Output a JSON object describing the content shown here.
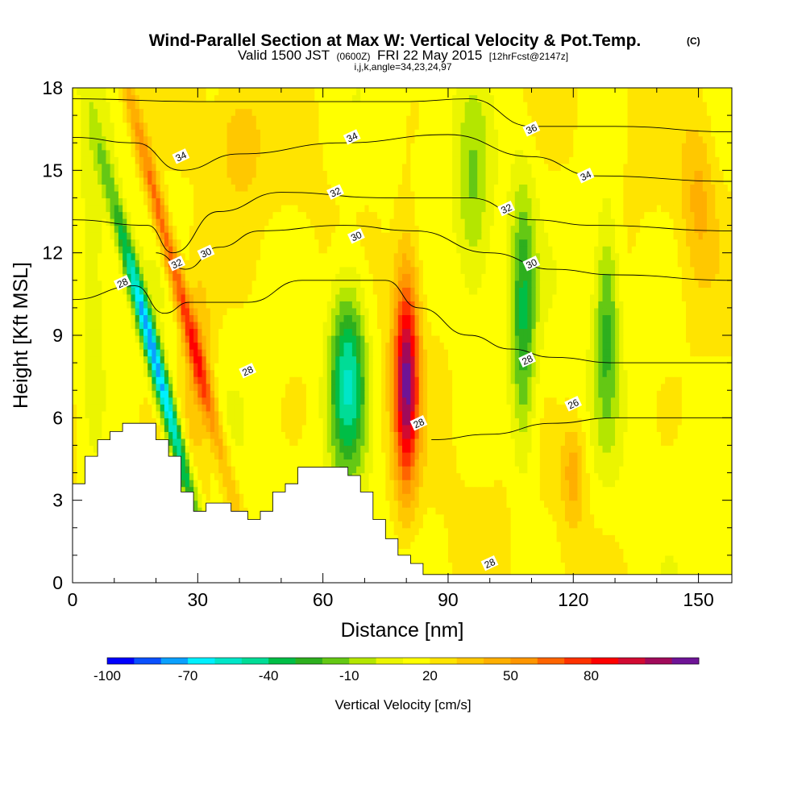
{
  "title": {
    "main": "Wind-Parallel Section at Max W: Vertical Velocity & Pot.Temp.",
    "copyright": "(C)",
    "valid_prefix": "Valid 1500 JST",
    "valid_utc": "(0600Z)",
    "valid_date": "FRI 22 May 2015",
    "forecast": "[12hrFcst@2147z]",
    "section_meta": "i,j,k,angle=34,23,24,97"
  },
  "colors": {
    "shade_palette": [
      "#0000ff",
      "#0a50ff",
      "#0aa0ff",
      "#00f0ff",
      "#00e6c8",
      "#00dc96",
      "#00be46",
      "#2daf1e",
      "#64c814",
      "#b4e600",
      "#ebf500",
      "#ffff00",
      "#ffe400",
      "#ffc800",
      "#ffaf00",
      "#ff9600",
      "#ff6400",
      "#ff3200",
      "#ff0000",
      "#d20a32",
      "#a00a5a",
      "#6e1496"
    ],
    "terrain": "#ffffff",
    "contour": "#000000"
  },
  "chart_data": {
    "type": "heatmap",
    "xlabel": "Distance [nm]",
    "ylabel": "Height [Kft MSL]",
    "xlim": [
      0,
      158
    ],
    "ylim": [
      0,
      18
    ],
    "x_ticks": [
      0,
      30,
      60,
      90,
      120,
      150
    ],
    "y_ticks": [
      0,
      3,
      6,
      9,
      12,
      15,
      18
    ],
    "colorbar": {
      "title": "Vertical Velocity [cm/s]",
      "levels": [
        -100,
        -90,
        -80,
        -70,
        -60,
        -50,
        -40,
        -30,
        -20,
        -10,
        0,
        10,
        20,
        30,
        40,
        50,
        60,
        70,
        80,
        90,
        100
      ],
      "labels": [
        "-100",
        "-70",
        "-40",
        "-10",
        "20",
        "50",
        "80"
      ],
      "label_values": [
        -100,
        -70,
        -40,
        -10,
        20,
        50,
        80
      ]
    },
    "terrain_profile": [
      {
        "x": 0,
        "y": 3.6
      },
      {
        "x": 3,
        "y": 4.6
      },
      {
        "x": 6,
        "y": 5.2
      },
      {
        "x": 9,
        "y": 5.5
      },
      {
        "x": 12,
        "y": 5.8
      },
      {
        "x": 18,
        "y": 5.8
      },
      {
        "x": 20,
        "y": 5.2
      },
      {
        "x": 23,
        "y": 4.6
      },
      {
        "x": 26,
        "y": 3.3
      },
      {
        "x": 29,
        "y": 2.6
      },
      {
        "x": 32,
        "y": 2.9
      },
      {
        "x": 38,
        "y": 2.6
      },
      {
        "x": 42,
        "y": 2.3
      },
      {
        "x": 45,
        "y": 2.6
      },
      {
        "x": 48,
        "y": 3.3
      },
      {
        "x": 51,
        "y": 3.6
      },
      {
        "x": 54,
        "y": 4.2
      },
      {
        "x": 63,
        "y": 4.2
      },
      {
        "x": 66,
        "y": 3.9
      },
      {
        "x": 69,
        "y": 3.3
      },
      {
        "x": 72,
        "y": 2.3
      },
      {
        "x": 75,
        "y": 1.6
      },
      {
        "x": 78,
        "y": 1.0
      },
      {
        "x": 81,
        "y": 0.7
      },
      {
        "x": 84,
        "y": 0.3
      },
      {
        "x": 158,
        "y": 0.3
      }
    ],
    "vertical_velocity_features": [
      {
        "kind": "updraft",
        "x": 80,
        "y": 7.5,
        "peak_cm_s": 90,
        "x_spread": 3.0,
        "y_spread": 4.0,
        "tilt": 0.0
      },
      {
        "kind": "updraft",
        "x": 25,
        "y": 11.0,
        "peak_cm_s": 55,
        "x_spread": 2.0,
        "y_spread": 8.0,
        "tilt": -1.7
      },
      {
        "kind": "updraft",
        "x": 30,
        "y": 8.0,
        "peak_cm_s": 25,
        "x_spread": 4.0,
        "y_spread": 4.0,
        "tilt": 0.0
      },
      {
        "kind": "downdraft",
        "x": 66,
        "y": 7.5,
        "peak_cm_s": -70,
        "x_spread": 4.5,
        "y_spread": 3.5,
        "tilt": 0.0
      },
      {
        "kind": "downdraft",
        "x": 20,
        "y": 8.0,
        "peak_cm_s": -95,
        "x_spread": 2.0,
        "y_spread": 6.0,
        "tilt": -1.7
      },
      {
        "kind": "downdraft",
        "x": 108,
        "y": 9.5,
        "peak_cm_s": -45,
        "x_spread": 3.0,
        "y_spread": 5.0,
        "tilt": 0.0
      },
      {
        "kind": "downdraft",
        "x": 128,
        "y": 9.5,
        "peak_cm_s": -40,
        "x_spread": 3.0,
        "y_spread": 4.0,
        "tilt": 0.0
      },
      {
        "kind": "downdraft",
        "x": 96,
        "y": 14.0,
        "peak_cm_s": -25,
        "x_spread": 4.0,
        "y_spread": 4.0,
        "tilt": 0.0
      },
      {
        "kind": "updraft",
        "x": 150,
        "y": 14.0,
        "peak_cm_s": 22,
        "x_spread": 4.0,
        "y_spread": 3.0,
        "tilt": 0.0
      },
      {
        "kind": "updraft",
        "x": 120,
        "y": 4.0,
        "peak_cm_s": 28,
        "x_spread": 3.0,
        "y_spread": 2.0,
        "tilt": 0.0
      },
      {
        "kind": "updraft",
        "x": 40,
        "y": 16.0,
        "peak_cm_s": 20,
        "x_spread": 5.0,
        "y_spread": 2.0,
        "tilt": 0.0
      },
      {
        "kind": "downdraft",
        "x": 5,
        "y": 10.0,
        "peak_cm_s": -15,
        "x_spread": 3.0,
        "y_spread": 6.0,
        "tilt": 0.0
      }
    ],
    "potential_temperature_contours": [
      {
        "value": 26,
        "label": "26",
        "points": [
          [
            86,
            5.2
          ],
          [
            100,
            5.4
          ],
          [
            115,
            5.8
          ],
          [
            130,
            6.0
          ],
          [
            158,
            6.0
          ]
        ]
      },
      {
        "value": 28,
        "label": "28",
        "points": [
          [
            0,
            10.3
          ],
          [
            15,
            10.8
          ],
          [
            22,
            9.8
          ],
          [
            28,
            10.2
          ],
          [
            42,
            10.2
          ],
          [
            55,
            11.0
          ],
          [
            75,
            11.0
          ],
          [
            83,
            10.0
          ],
          [
            95,
            9.0
          ],
          [
            105,
            8.5
          ],
          [
            115,
            8.2
          ],
          [
            130,
            8.0
          ],
          [
            158,
            8.0
          ]
        ]
      },
      {
        "value": 30,
        "label": "30",
        "points": [
          [
            20,
            12.0
          ],
          [
            27,
            11.4
          ],
          [
            35,
            12.2
          ],
          [
            45,
            12.8
          ],
          [
            65,
            13.0
          ],
          [
            82,
            12.8
          ],
          [
            100,
            12.0
          ],
          [
            115,
            11.4
          ],
          [
            130,
            11.2
          ],
          [
            158,
            11.0
          ]
        ]
      },
      {
        "value": 32,
        "label": "32",
        "points": [
          [
            0,
            13.2
          ],
          [
            18,
            13.0
          ],
          [
            24,
            12.0
          ],
          [
            35,
            13.5
          ],
          [
            50,
            14.2
          ],
          [
            75,
            14.0
          ],
          [
            95,
            14.0
          ],
          [
            110,
            13.2
          ],
          [
            125,
            13.0
          ],
          [
            158,
            12.8
          ]
        ]
      },
      {
        "value": 34,
        "label": "34",
        "points": [
          [
            0,
            16.2
          ],
          [
            15,
            16.0
          ],
          [
            26,
            15.0
          ],
          [
            40,
            15.6
          ],
          [
            65,
            16.0
          ],
          [
            90,
            16.3
          ],
          [
            110,
            15.5
          ],
          [
            125,
            14.8
          ],
          [
            158,
            14.6
          ]
        ]
      },
      {
        "value": 36,
        "label": "36",
        "points": [
          [
            0,
            17.6
          ],
          [
            30,
            17.5
          ],
          [
            60,
            17.5
          ],
          [
            80,
            17.5
          ],
          [
            95,
            17.6
          ],
          [
            110,
            16.6
          ],
          [
            130,
            16.6
          ],
          [
            158,
            16.4
          ]
        ]
      }
    ],
    "contour_labels": [
      {
        "text": "34",
        "x": 26,
        "y": 15.5
      },
      {
        "text": "34",
        "x": 67,
        "y": 16.2
      },
      {
        "text": "36",
        "x": 110,
        "y": 16.5
      },
      {
        "text": "34",
        "x": 123,
        "y": 14.8
      },
      {
        "text": "32",
        "x": 63,
        "y": 14.2
      },
      {
        "text": "32",
        "x": 104,
        "y": 13.6
      },
      {
        "text": "30",
        "x": 68,
        "y": 12.6
      },
      {
        "text": "30",
        "x": 110,
        "y": 11.6
      },
      {
        "text": "32",
        "x": 25,
        "y": 11.6
      },
      {
        "text": "30",
        "x": 32,
        "y": 12.0
      },
      {
        "text": "28",
        "x": 12,
        "y": 10.9
      },
      {
        "text": "28",
        "x": 42,
        "y": 7.7
      },
      {
        "text": "28",
        "x": 83,
        "y": 5.8
      },
      {
        "text": "28",
        "x": 109,
        "y": 8.1
      },
      {
        "text": "26",
        "x": 120,
        "y": 6.5
      },
      {
        "text": "28",
        "x": 100,
        "y": 0.7
      }
    ]
  }
}
